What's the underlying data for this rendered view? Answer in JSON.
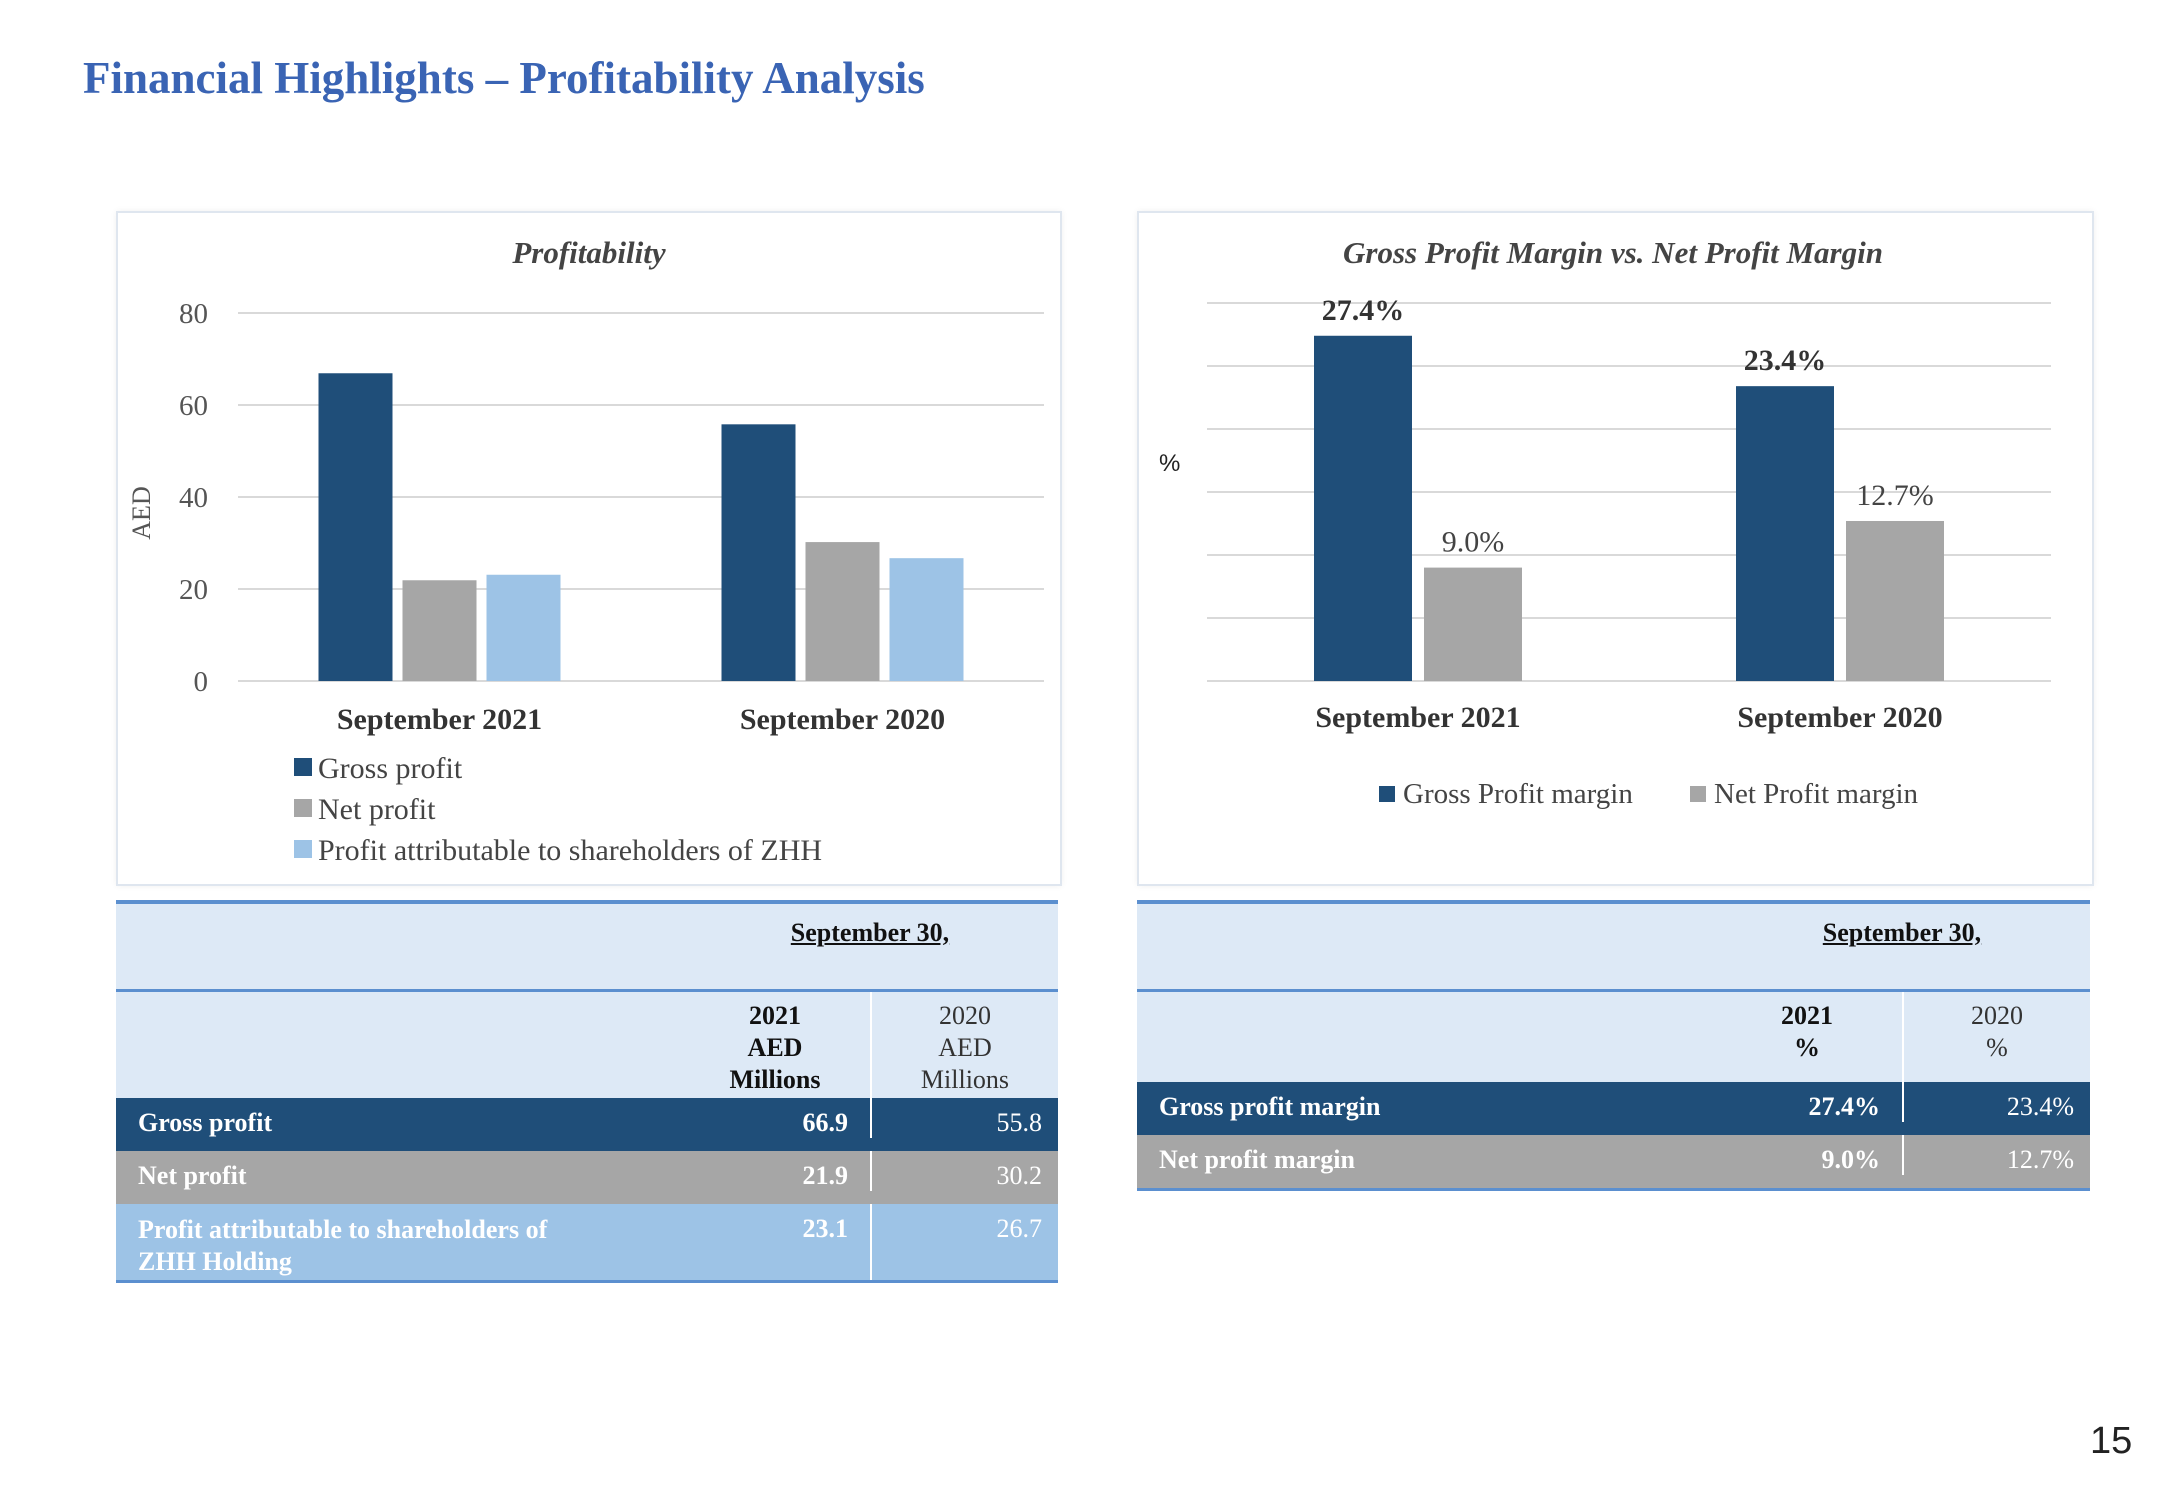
{
  "page": {
    "title": "Financial Highlights – Profitability Analysis",
    "page_number": "15"
  },
  "colors": {
    "title": "#3a64b4",
    "gross": "#1f4e79",
    "net": "#a6a6a6",
    "attributable": "#9dc3e6",
    "table_header": "#dde9f6",
    "table_rule": "#5b8fcf"
  },
  "chart_data": [
    {
      "type": "bar",
      "title": "Profitability",
      "ylabel": "AED",
      "xlabel": "",
      "ylim": [
        0,
        80
      ],
      "yticks": [
        0,
        20,
        40,
        60,
        80
      ],
      "grid": true,
      "legend_position": "bottom",
      "categories": [
        "September 2021",
        "September 2020"
      ],
      "series": [
        {
          "name": "Gross profit",
          "values": [
            66.9,
            55.8
          ],
          "color": "#1f4e79"
        },
        {
          "name": "Net profit",
          "values": [
            21.9,
            30.2
          ],
          "color": "#a6a6a6"
        },
        {
          "name": "Profit attributable to shareholders of ZHH",
          "values": [
            23.1,
            26.7
          ],
          "color": "#9dc3e6"
        }
      ]
    },
    {
      "type": "bar",
      "title": "Gross Profit Margin vs. Net Profit Margin",
      "ylabel": "%",
      "xlabel": "",
      "ylim": [
        0,
        30
      ],
      "grid": true,
      "legend_position": "bottom",
      "categories": [
        "September 2021",
        "September 2020"
      ],
      "series": [
        {
          "name": "Gross Profit margin",
          "values": [
            27.4,
            23.4
          ],
          "labels": [
            "27.4%",
            "23.4%"
          ],
          "color": "#1f4e79"
        },
        {
          "name": "Net Profit margin",
          "values": [
            9.0,
            12.7
          ],
          "labels": [
            "9.0%",
            "12.7%"
          ],
          "color": "#a6a6a6"
        }
      ]
    }
  ],
  "table1": {
    "period": "September 30,",
    "col1": [
      "2021",
      "AED",
      "Millions"
    ],
    "col2": [
      "2020",
      "AED",
      "Millions"
    ],
    "rows": [
      {
        "label": "Gross profit",
        "v2021": "66.9",
        "v2020": "55.8"
      },
      {
        "label": "Net profit",
        "v2021": "21.9",
        "v2020": "30.2"
      },
      {
        "label": "Profit attributable to shareholders of ZHH Holding",
        "v2021": "23.1",
        "v2020": "26.7"
      }
    ]
  },
  "table2": {
    "period": "September 30,",
    "col1": [
      "2021",
      "%"
    ],
    "col2": [
      "2020",
      "%"
    ],
    "rows": [
      {
        "label": "Gross profit margin",
        "v2021": "27.4%",
        "v2020": "23.4%"
      },
      {
        "label": "Net profit margin",
        "v2021": "9.0%",
        "v2020": "12.7%"
      }
    ]
  }
}
